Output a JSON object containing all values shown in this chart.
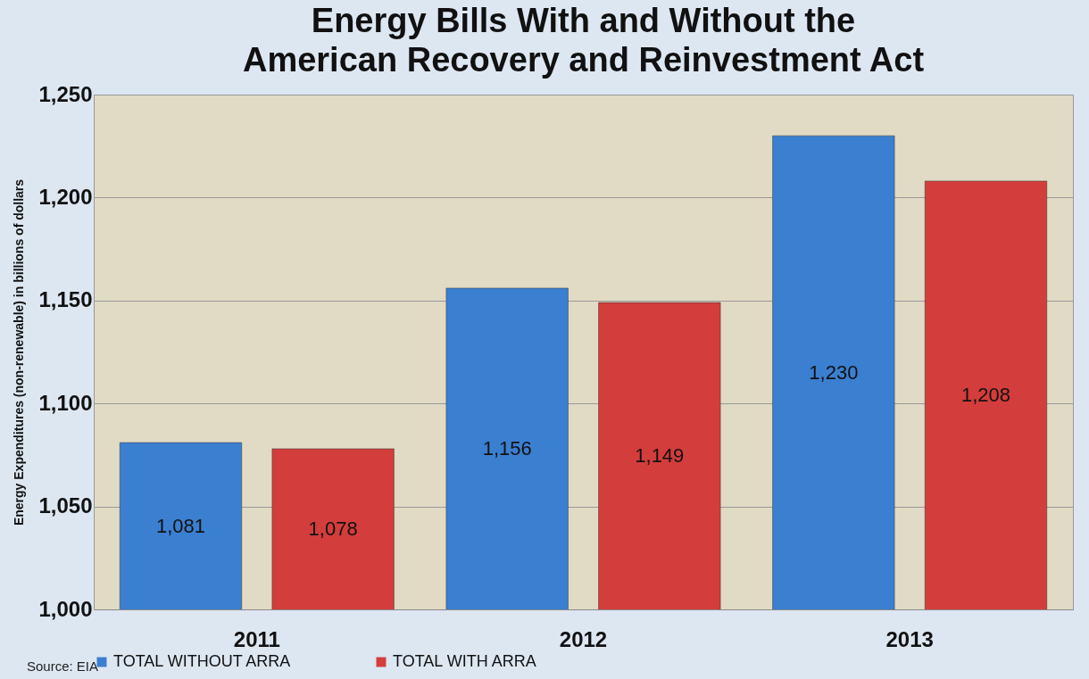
{
  "chart_data": {
    "type": "bar",
    "title": "Energy Bills With and Without the\nAmerican Recovery and Reinvestment Act",
    "ylabel": "Energy Expenditures (non-renewable) in billions of dollars",
    "categories": [
      "2011",
      "2012",
      "2013"
    ],
    "series": [
      {
        "name": "TOTAL WITHOUT ARRA",
        "color": "#3b7fd0",
        "values": [
          1081,
          1156,
          1230
        ],
        "value_labels": [
          "1,081",
          "1,156",
          "1,230"
        ]
      },
      {
        "name": "TOTAL WITH ARRA",
        "color": "#d33d3b",
        "values": [
          1078,
          1149,
          1208
        ],
        "value_labels": [
          "1,078",
          "1,149",
          "1,208"
        ]
      }
    ],
    "ylim": [
      1000,
      1250
    ],
    "yticks": [
      {
        "value": 1000,
        "label": "1,000"
      },
      {
        "value": 1050,
        "label": "1,050"
      },
      {
        "value": 1100,
        "label": "1,100"
      },
      {
        "value": 1150,
        "label": "1,150"
      },
      {
        "value": 1200,
        "label": "1,200"
      },
      {
        "value": 1250,
        "label": "1,250"
      }
    ],
    "grid": "y",
    "legend": "bottom",
    "annotations": [
      "Source: EIA"
    ]
  }
}
